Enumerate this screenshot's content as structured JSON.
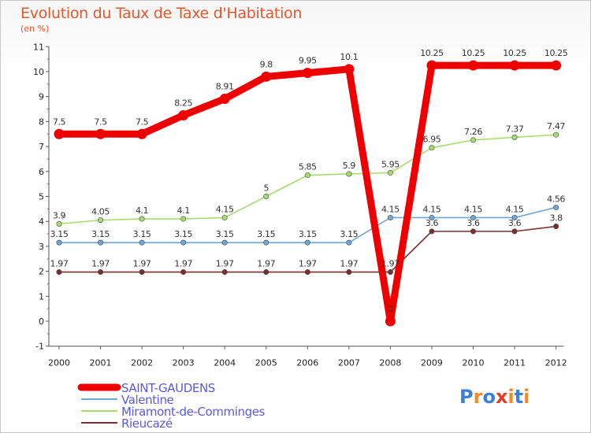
{
  "title": "Evolution du Taux de Taxe d'Habitation",
  "subtitle": "(en %)",
  "logo": {
    "text": "Proxiti",
    "letters": [
      "P",
      "r",
      "o",
      "x",
      "i",
      "t",
      "i"
    ],
    "colors": [
      "#3b7fd6",
      "#f08a24",
      "#3b7fd6",
      "#e23c2a",
      "#f08a24",
      "#3b7fd6",
      "#f08a24"
    ]
  },
  "chart_data": {
    "type": "line",
    "x": [
      2000,
      2001,
      2002,
      2003,
      2004,
      2005,
      2006,
      2007,
      2008,
      2009,
      2010,
      2011,
      2012
    ],
    "y_ticks": [
      -1,
      0,
      1,
      2,
      3,
      4,
      5,
      6,
      7,
      8,
      9,
      10,
      11
    ],
    "y_tick_labels": [
      "-1",
      "0",
      "1",
      "2",
      "3",
      "4",
      "5",
      "6",
      "7",
      "8",
      "9",
      "10",
      "11"
    ],
    "ylim": [
      -1,
      11
    ],
    "grid": false,
    "legend_position": "bottom-left",
    "series": [
      {
        "name": "SAINT-GAUDENS",
        "color": "#ee0000",
        "values": [
          7.5,
          7.5,
          7.5,
          8.25,
          8.91,
          9.8,
          9.95,
          10.1,
          0,
          10.25,
          10.25,
          10.25,
          10.25
        ],
        "labels": [
          "7.5",
          "7.5",
          "7.5",
          "8.25",
          "8.91",
          "9.8",
          "9.95",
          "10.1",
          "0",
          "10.25",
          "10.25",
          "10.25",
          "10.25"
        ]
      },
      {
        "name": "Valentine",
        "color": "#6fa8d6",
        "values": [
          3.15,
          3.15,
          3.15,
          3.15,
          3.15,
          3.15,
          3.15,
          3.15,
          4.15,
          4.15,
          4.15,
          4.15,
          4.56
        ],
        "labels": [
          "3.15",
          "3.15",
          "3.15",
          "3.15",
          "3.15",
          "3.15",
          "3.15",
          "3.15",
          "4.15",
          "4.15",
          "4.15",
          "4.15",
          "4.56"
        ]
      },
      {
        "name": "Miramont-de-Comminges",
        "color": "#a6dc6e",
        "values": [
          3.9,
          4.05,
          4.1,
          4.1,
          4.15,
          5,
          5.85,
          5.9,
          5.95,
          6.95,
          7.26,
          7.37,
          7.47
        ],
        "labels": [
          "3.9",
          "4.05",
          "4.1",
          "4.1",
          "4.15",
          "5",
          "5.85",
          "5.9",
          "5.95",
          "6.95",
          "7.26",
          "7.37",
          "7.47"
        ]
      },
      {
        "name": "Rieucazé",
        "color": "#7a2e2e",
        "values": [
          1.97,
          1.97,
          1.97,
          1.97,
          1.97,
          1.97,
          1.97,
          1.97,
          1.97,
          3.6,
          3.6,
          3.6,
          3.8
        ],
        "labels": [
          "1.97",
          "1.97",
          "1.97",
          "1.97",
          "1.97",
          "1.97",
          "1.97",
          "1.97",
          "1.97",
          "3.6",
          "3.6",
          "3.6",
          "3.8"
        ]
      }
    ]
  }
}
